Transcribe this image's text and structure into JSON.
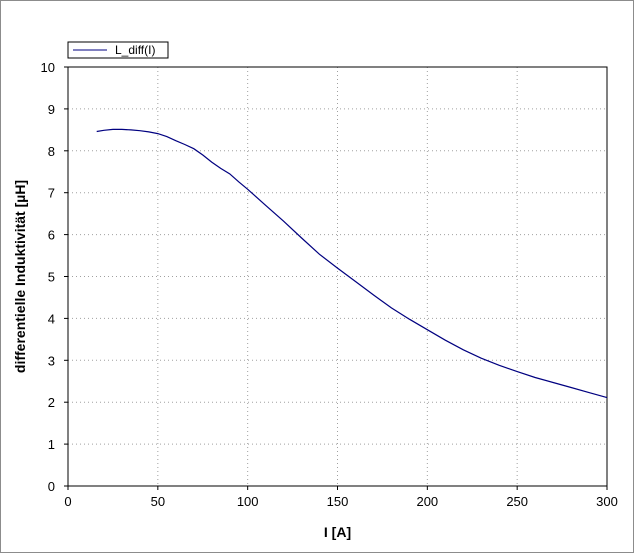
{
  "chart_data": {
    "type": "line",
    "xlabel": "I [A]",
    "ylabel": "differentielle Induktivität [µH]",
    "xlim": [
      0,
      300
    ],
    "ylim": [
      0,
      10
    ],
    "xticks": [
      0,
      50,
      100,
      150,
      200,
      250,
      300
    ],
    "yticks": [
      0,
      1,
      2,
      3,
      4,
      5,
      6,
      7,
      8,
      9,
      10
    ],
    "grid": true,
    "legend_position": "top-left",
    "series": [
      {
        "name": "L_diff(I)",
        "color": "#000080",
        "x": [
          16,
          20,
          25,
          30,
          35,
          40,
          45,
          50,
          55,
          60,
          65,
          70,
          75,
          80,
          85,
          90,
          95,
          100,
          110,
          120,
          130,
          140,
          150,
          160,
          170,
          180,
          190,
          200,
          210,
          220,
          230,
          240,
          250,
          260,
          270,
          280,
          290,
          300
        ],
        "y": [
          8.46,
          8.49,
          8.51,
          8.51,
          8.5,
          8.48,
          8.45,
          8.41,
          8.34,
          8.24,
          8.15,
          8.05,
          7.9,
          7.73,
          7.58,
          7.45,
          7.26,
          7.08,
          6.7,
          6.32,
          5.92,
          5.53,
          5.2,
          4.88,
          4.56,
          4.25,
          3.98,
          3.73,
          3.48,
          3.25,
          3.05,
          2.88,
          2.73,
          2.59,
          2.47,
          2.35,
          2.23,
          2.11
        ]
      }
    ]
  }
}
